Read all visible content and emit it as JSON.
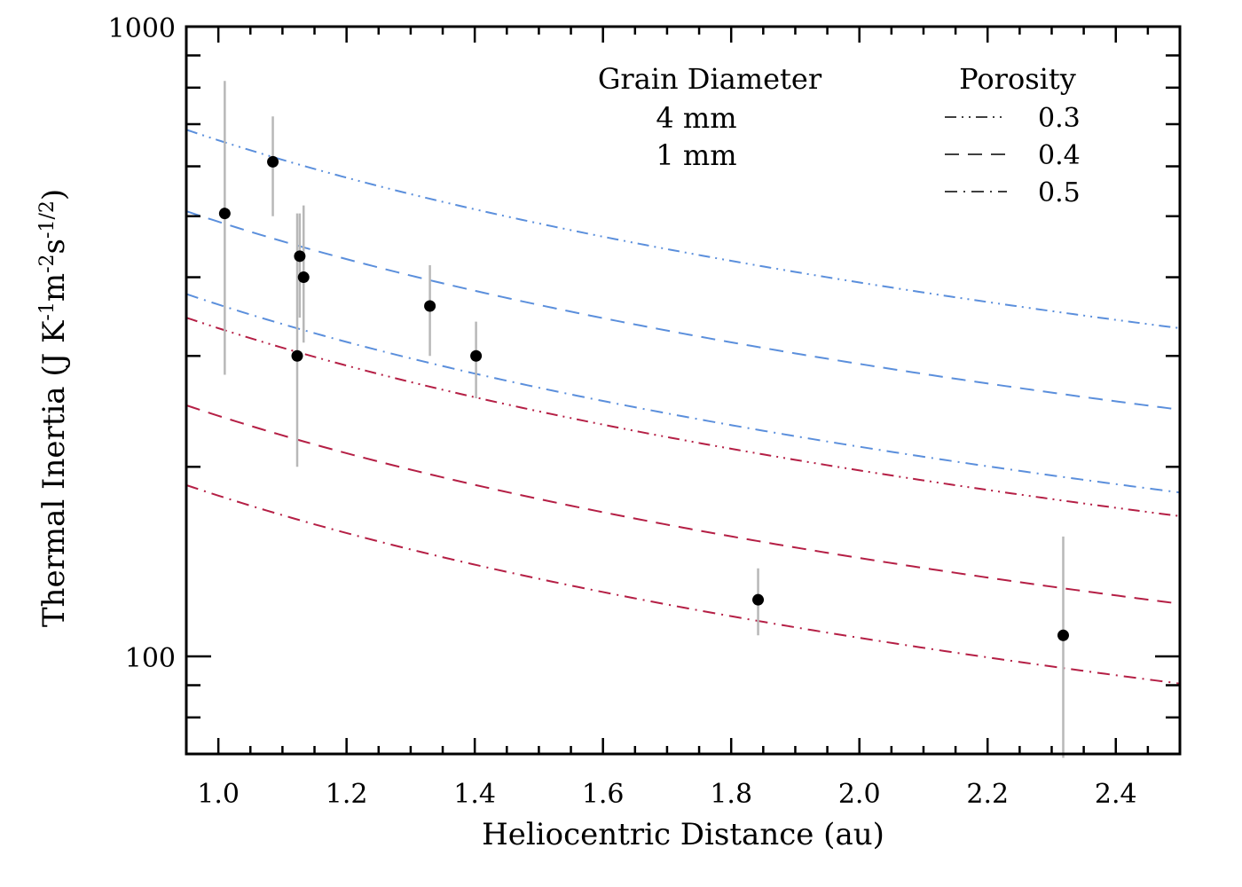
{
  "chart_data": {
    "type": "scatter",
    "xlabel": "Heliocentric Distance (au)",
    "ylabel": {
      "main": "Thermal Inertia (J K",
      "sup1": "-1",
      "part2": "m",
      "sup2": "-2",
      "part3": "s",
      "sup3": "-1/2",
      "end": ")"
    },
    "xlim": [
      0.95,
      2.5
    ],
    "ylim": [
      70,
      1000
    ],
    "yscale": "log",
    "x_ticks": [
      1.0,
      1.2,
      1.4,
      1.6,
      1.8,
      2.0,
      2.2,
      2.4
    ],
    "x_tick_labels": [
      "1.0",
      "1.2",
      "1.4",
      "1.6",
      "1.8",
      "2.0",
      "2.2",
      "2.4"
    ],
    "y_ticks": [
      100,
      1000
    ],
    "y_tick_labels": [
      "100",
      "1000"
    ],
    "grid": false,
    "legend": {
      "grain_title": "Grain Diameter",
      "grain_entries": [
        {
          "label": "4 mm",
          "color": "#5b8fdc"
        },
        {
          "label": "1 mm",
          "color": "#b51f45"
        }
      ],
      "porosity_title": "Porosity",
      "porosity_entries": [
        {
          "label": "0.3",
          "dash": "dash-dot-dot"
        },
        {
          "label": "0.4",
          "dash": "dash"
        },
        {
          "label": "0.5",
          "dash": "dash-dot"
        }
      ]
    },
    "series": [
      {
        "diameter": "4 mm",
        "porosity": "0.3",
        "color": "#5b8fdc",
        "dash": "dash-dot-dot",
        "coef": 660,
        "exponent": -0.75
      },
      {
        "diameter": "4 mm",
        "porosity": "0.4",
        "color": "#5b8fdc",
        "dash": "dash",
        "coef": 490,
        "exponent": -0.75
      },
      {
        "diameter": "4 mm",
        "porosity": "0.5",
        "color": "#5b8fdc",
        "dash": "dash-dot",
        "coef": 362,
        "exponent": -0.75
      },
      {
        "diameter": "1 mm",
        "porosity": "0.3",
        "color": "#b51f45",
        "dash": "dash-dot-dot",
        "coef": 332,
        "exponent": -0.75
      },
      {
        "diameter": "1 mm",
        "porosity": "0.4",
        "color": "#b51f45",
        "dash": "dash",
        "coef": 241,
        "exponent": -0.75
      },
      {
        "diameter": "1 mm",
        "porosity": "0.5",
        "color": "#b51f45",
        "dash": "dash-dot",
        "coef": 180,
        "exponent": -0.75
      }
    ],
    "points": [
      {
        "x": 1.01,
        "y": 505,
        "ylo": 280,
        "yhi": 820
      },
      {
        "x": 1.085,
        "y": 610,
        "ylo": 500,
        "yhi": 720
      },
      {
        "x": 1.123,
        "y": 300,
        "ylo": 200,
        "yhi": 505
      },
      {
        "x": 1.127,
        "y": 432,
        "ylo": 345,
        "yhi": 505
      },
      {
        "x": 1.133,
        "y": 400,
        "ylo": 315,
        "yhi": 520
      },
      {
        "x": 1.33,
        "y": 360,
        "ylo": 300,
        "yhi": 418
      },
      {
        "x": 1.402,
        "y": 300,
        "ylo": 257,
        "yhi": 340
      },
      {
        "x": 1.842,
        "y": 123,
        "ylo": 108,
        "yhi": 138
      },
      {
        "x": 2.318,
        "y": 108,
        "ylo": 69,
        "yhi": 155
      }
    ],
    "point_color": "#000000",
    "errorbar_color": "#b8b8b8"
  }
}
